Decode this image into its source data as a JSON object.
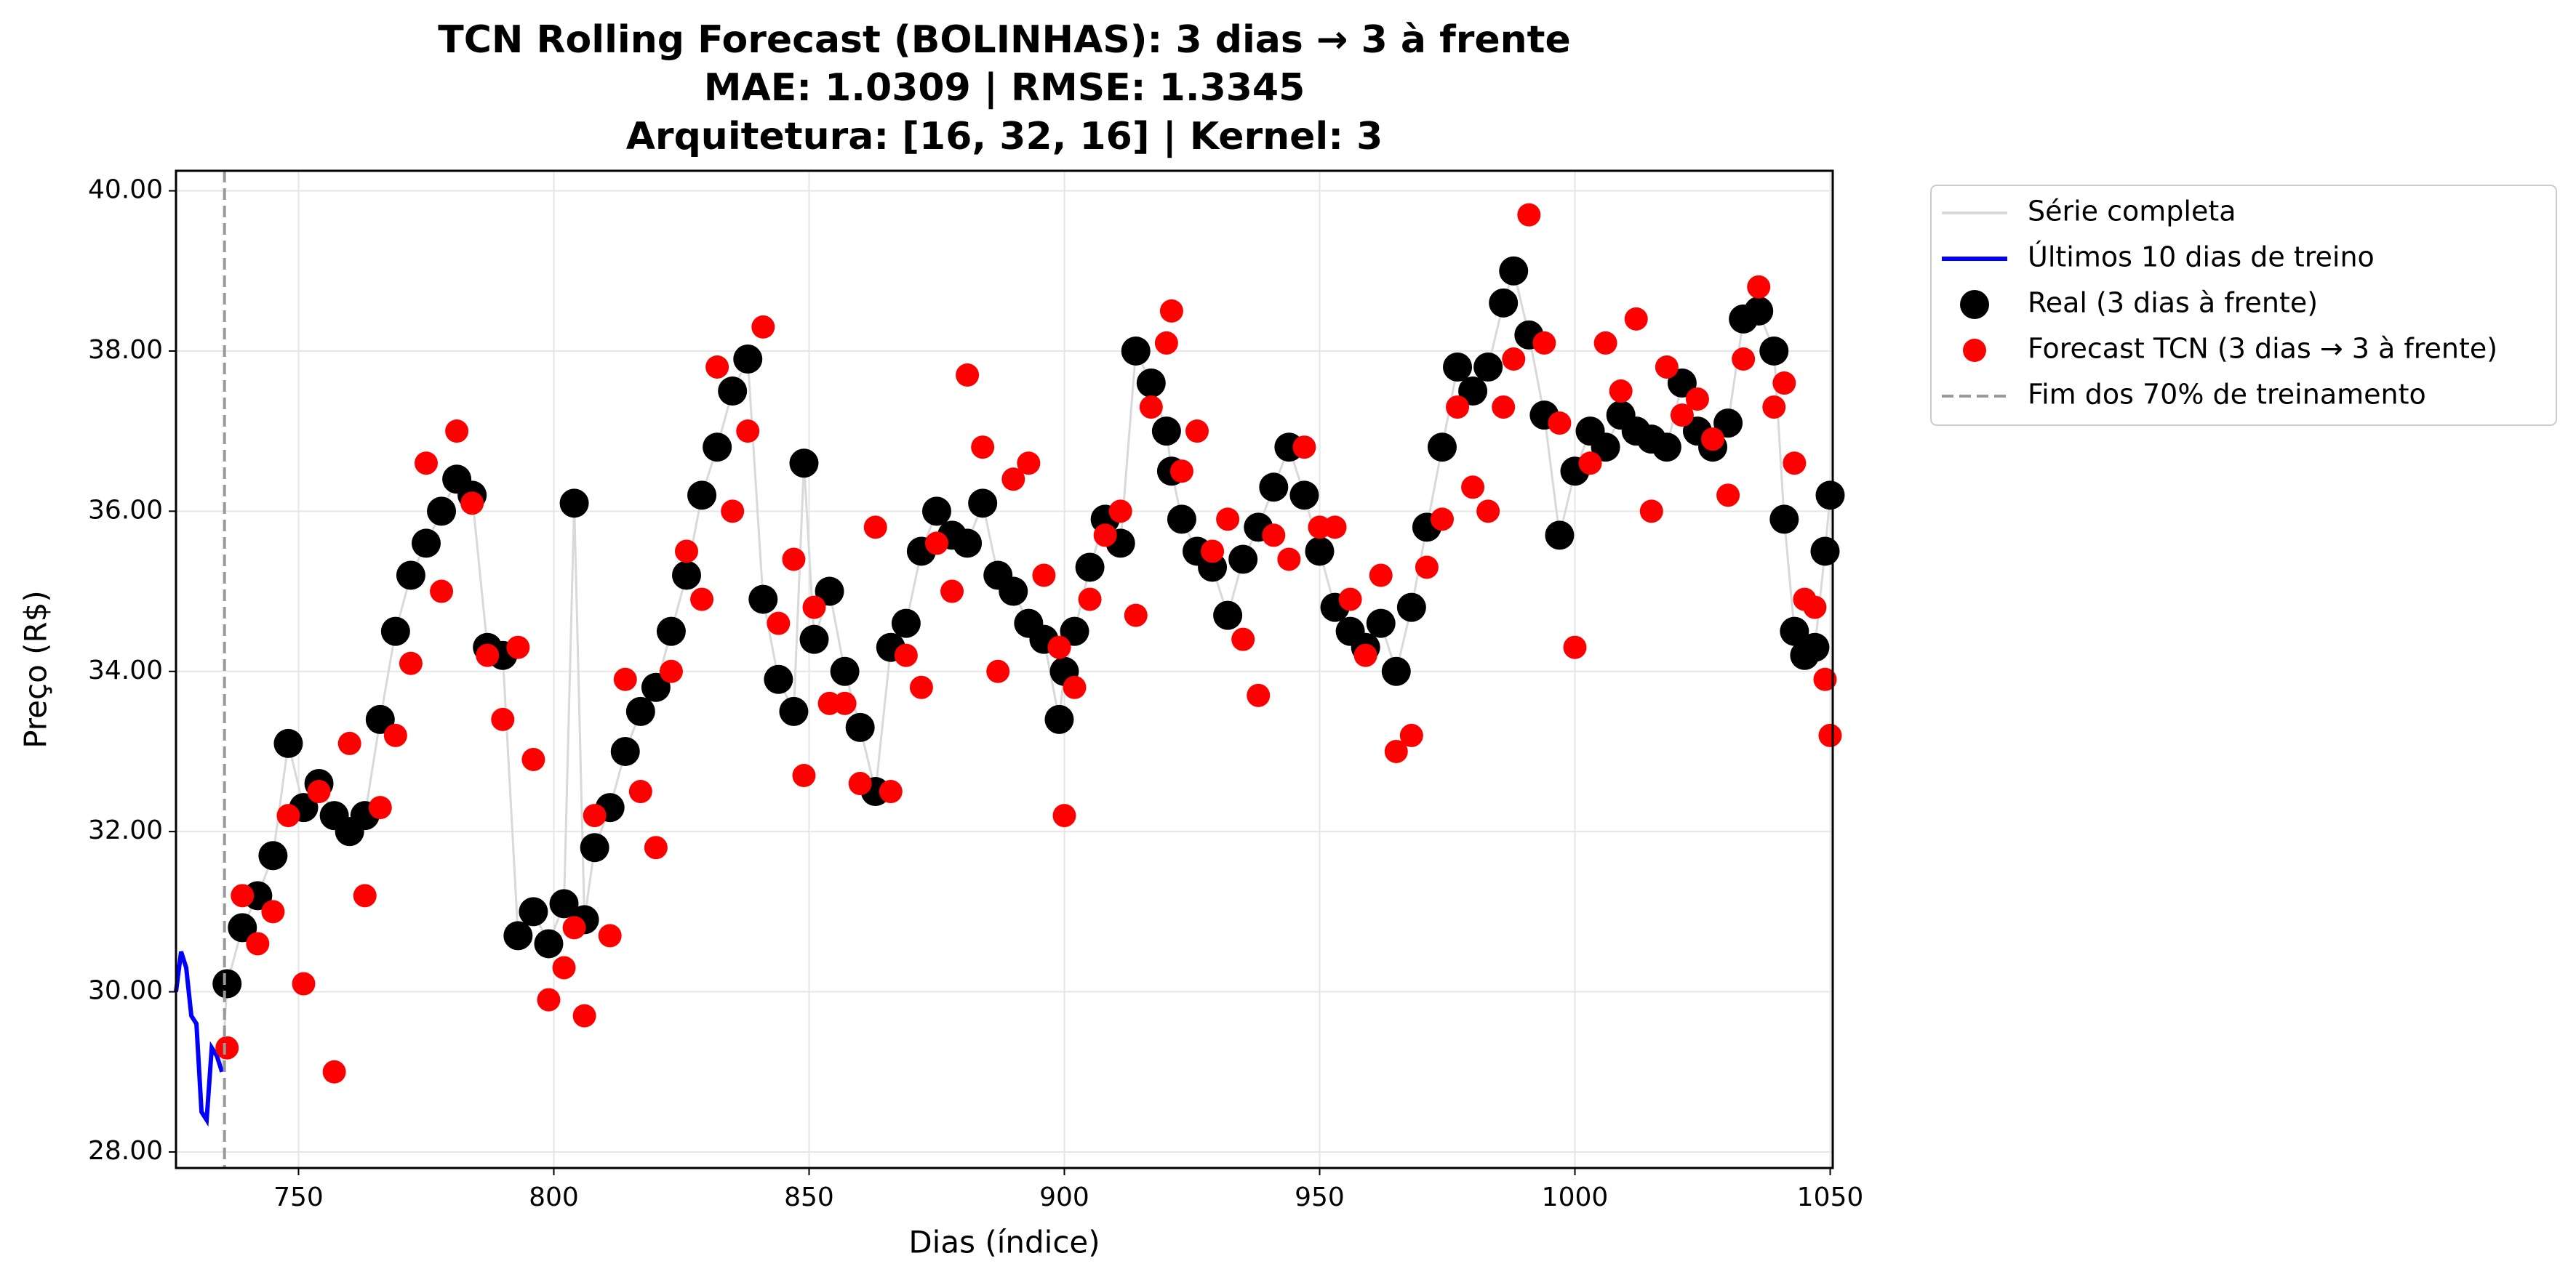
{
  "chart_data": {
    "type": "line",
    "title": [
      "TCN Rolling Forecast (BOLINHAS): 3 dias → 3 à frente",
      "MAE: 1.0309 | RMSE: 1.3345",
      "Arquitetura: [16, 32, 16] | Kernel: 3"
    ],
    "x_label": "Dias (índice)",
    "y_label": "Preço (R$)",
    "xlim": [
      726,
      1050.5
    ],
    "ylim": [
      27.8,
      40.25
    ],
    "xticks": [
      750,
      800,
      850,
      900,
      950,
      1000,
      1050
    ],
    "yticks": [
      {
        "value": 28,
        "label": "28.00"
      },
      {
        "value": 30,
        "label": "30.00"
      },
      {
        "value": 32,
        "label": "32.00"
      },
      {
        "value": 34,
        "label": "34.00"
      },
      {
        "value": 36,
        "label": "36.00"
      },
      {
        "value": 38,
        "label": "38.00"
      },
      {
        "value": 40,
        "label": "40.00"
      }
    ],
    "grid": true,
    "legend": "outside-upper-right",
    "series": [
      {
        "name": "Série completa",
        "kind": "line",
        "color": "#d9d9d9",
        "x": [
          726,
          727,
          728,
          729,
          730,
          731,
          732,
          733,
          734,
          735,
          736,
          739,
          742,
          745,
          748,
          751,
          754,
          757,
          760,
          763,
          766,
          769,
          772,
          775,
          778,
          781,
          784,
          787,
          790,
          793,
          796,
          799,
          802,
          804,
          806,
          808,
          811,
          814,
          817,
          820,
          823,
          826,
          829,
          832,
          835,
          838,
          841,
          844,
          847,
          849,
          851,
          854,
          857,
          860,
          863,
          866,
          869,
          872,
          875,
          878,
          881,
          884,
          887,
          890,
          893,
          896,
          899,
          900,
          902,
          905,
          908,
          911,
          914,
          917,
          920,
          921,
          923,
          926,
          929,
          932,
          935,
          938,
          941,
          944,
          947,
          950,
          953,
          956,
          959,
          962,
          965,
          968,
          971,
          974,
          977,
          980,
          983,
          986,
          988,
          991,
          994,
          997,
          1000,
          1003,
          1006,
          1009,
          1012,
          1015,
          1018,
          1021,
          1024,
          1027,
          1030,
          1033,
          1036,
          1039,
          1041,
          1043,
          1045,
          1047,
          1049,
          1050
        ],
        "values": [
          30.0,
          30.5,
          30.3,
          29.7,
          29.6,
          28.5,
          28.4,
          29.3,
          29.2,
          29.0,
          30.1,
          30.8,
          31.2,
          31.7,
          33.1,
          32.3,
          32.6,
          32.2,
          32.0,
          32.2,
          33.4,
          34.5,
          35.2,
          35.6,
          36.0,
          36.4,
          36.2,
          34.3,
          34.2,
          30.7,
          31.0,
          30.6,
          31.1,
          36.1,
          30.9,
          31.8,
          32.3,
          33.0,
          33.5,
          33.8,
          34.5,
          35.2,
          36.2,
          36.8,
          37.5,
          37.9,
          34.9,
          33.9,
          33.5,
          36.6,
          34.4,
          35.0,
          34.0,
          33.3,
          32.5,
          34.3,
          34.6,
          35.5,
          36.0,
          35.7,
          35.6,
          36.1,
          35.2,
          35.0,
          34.6,
          34.4,
          33.4,
          34.0,
          34.5,
          35.3,
          35.9,
          35.6,
          38.0,
          37.6,
          37.0,
          36.5,
          35.9,
          35.5,
          35.3,
          34.7,
          35.4,
          35.8,
          36.3,
          36.8,
          36.2,
          35.5,
          34.8,
          34.5,
          34.3,
          34.6,
          34.0,
          34.8,
          35.8,
          36.8,
          37.8,
          37.5,
          37.8,
          38.6,
          39.0,
          38.2,
          37.2,
          35.7,
          36.5,
          37.0,
          36.8,
          37.2,
          37.0,
          36.9,
          36.8,
          37.6,
          37.0,
          36.8,
          37.1,
          38.4,
          38.5,
          38.0,
          35.9,
          34.5,
          34.2,
          34.3,
          35.5,
          36.2
        ]
      },
      {
        "name": "Últimos 10 dias de treino",
        "kind": "line",
        "color": "#0000ff",
        "x": [
          726,
          727,
          728,
          729,
          730,
          731,
          732,
          733,
          734,
          735
        ],
        "values": [
          30.0,
          30.5,
          30.3,
          29.7,
          29.6,
          28.5,
          28.4,
          29.3,
          29.2,
          29.0
        ]
      },
      {
        "name": "Real (3 dias à frente)",
        "kind": "scatter",
        "color": "#000000",
        "x": [
          736,
          739,
          742,
          745,
          748,
          751,
          754,
          757,
          760,
          763,
          766,
          769,
          772,
          775,
          778,
          781,
          784,
          787,
          790,
          793,
          796,
          799,
          802,
          804,
          806,
          808,
          811,
          814,
          817,
          820,
          823,
          826,
          829,
          832,
          835,
          838,
          841,
          844,
          847,
          849,
          851,
          854,
          857,
          860,
          863,
          866,
          869,
          872,
          875,
          878,
          881,
          884,
          887,
          890,
          893,
          896,
          899,
          900,
          902,
          905,
          908,
          911,
          914,
          917,
          920,
          921,
          923,
          926,
          929,
          932,
          935,
          938,
          941,
          944,
          947,
          950,
          953,
          956,
          959,
          962,
          965,
          968,
          971,
          974,
          977,
          980,
          983,
          986,
          988,
          991,
          994,
          997,
          1000,
          1003,
          1006,
          1009,
          1012,
          1015,
          1018,
          1021,
          1024,
          1027,
          1030,
          1033,
          1036,
          1039,
          1041,
          1043,
          1045,
          1047,
          1049,
          1050
        ],
        "values": [
          30.1,
          30.8,
          31.2,
          31.7,
          33.1,
          32.3,
          32.6,
          32.2,
          32.0,
          32.2,
          33.4,
          34.5,
          35.2,
          35.6,
          36.0,
          36.4,
          36.2,
          34.3,
          34.2,
          30.7,
          31.0,
          30.6,
          31.1,
          36.1,
          30.9,
          31.8,
          32.3,
          33.0,
          33.5,
          33.8,
          34.5,
          35.2,
          36.2,
          36.8,
          37.5,
          37.9,
          34.9,
          33.9,
          33.5,
          36.6,
          34.4,
          35.0,
          34.0,
          33.3,
          32.5,
          34.3,
          34.6,
          35.5,
          36.0,
          35.7,
          35.6,
          36.1,
          35.2,
          35.0,
          34.6,
          34.4,
          33.4,
          34.0,
          34.5,
          35.3,
          35.9,
          35.6,
          38.0,
          37.6,
          37.0,
          36.5,
          35.9,
          35.5,
          35.3,
          34.7,
          35.4,
          35.8,
          36.3,
          36.8,
          36.2,
          35.5,
          34.8,
          34.5,
          34.3,
          34.6,
          34.0,
          34.8,
          35.8,
          36.8,
          37.8,
          37.5,
          37.8,
          38.6,
          39.0,
          38.2,
          37.2,
          35.7,
          36.5,
          37.0,
          36.8,
          37.2,
          37.0,
          36.9,
          36.8,
          37.6,
          37.0,
          36.8,
          37.1,
          38.4,
          38.5,
          38.0,
          35.9,
          34.5,
          34.2,
          34.3,
          35.5,
          36.2
        ]
      },
      {
        "name": "Forecast TCN (3 dias → 3 à frente)",
        "kind": "scatter",
        "color": "#ff0000",
        "x": [
          736,
          739,
          742,
          745,
          748,
          751,
          754,
          757,
          760,
          763,
          766,
          769,
          772,
          775,
          778,
          781,
          784,
          787,
          790,
          793,
          796,
          799,
          802,
          804,
          806,
          808,
          811,
          814,
          817,
          820,
          823,
          826,
          829,
          832,
          835,
          838,
          841,
          844,
          847,
          849,
          851,
          854,
          857,
          860,
          863,
          866,
          869,
          872,
          875,
          878,
          881,
          884,
          887,
          890,
          893,
          896,
          899,
          900,
          902,
          905,
          908,
          911,
          914,
          917,
          920,
          921,
          923,
          926,
          929,
          932,
          935,
          938,
          941,
          944,
          947,
          950,
          953,
          956,
          959,
          962,
          965,
          968,
          971,
          974,
          977,
          980,
          983,
          986,
          988,
          991,
          994,
          997,
          1000,
          1003,
          1006,
          1009,
          1012,
          1015,
          1018,
          1021,
          1024,
          1027,
          1030,
          1033,
          1036,
          1039,
          1041,
          1043,
          1045,
          1047,
          1049,
          1050
        ],
        "values": [
          29.3,
          31.2,
          30.6,
          31.0,
          32.2,
          30.1,
          32.5,
          29.0,
          33.1,
          31.2,
          32.3,
          33.2,
          34.1,
          36.6,
          35.0,
          37.0,
          36.1,
          34.2,
          33.4,
          34.3,
          32.9,
          29.9,
          30.3,
          30.8,
          29.7,
          32.2,
          30.7,
          33.9,
          32.5,
          31.8,
          34.0,
          35.5,
          34.9,
          37.8,
          36.0,
          37.0,
          38.3,
          34.6,
          35.4,
          32.7,
          34.8,
          33.6,
          33.6,
          32.6,
          35.8,
          32.5,
          34.2,
          33.8,
          35.6,
          35.0,
          37.7,
          36.8,
          34.0,
          36.4,
          36.6,
          35.2,
          34.3,
          32.2,
          33.8,
          34.9,
          35.7,
          36.0,
          34.7,
          37.3,
          38.1,
          38.5,
          36.5,
          37.0,
          35.5,
          35.9,
          34.4,
          33.7,
          35.7,
          35.4,
          36.8,
          35.8,
          35.8,
          34.9,
          34.2,
          35.2,
          33.0,
          33.2,
          35.3,
          35.9,
          37.3,
          36.3,
          36.0,
          37.3,
          37.9,
          39.7,
          38.1,
          37.1,
          34.3,
          36.6,
          38.1,
          37.5,
          38.4,
          36.0,
          37.8,
          37.2,
          37.4,
          36.9,
          36.2,
          37.9,
          38.8,
          37.3,
          37.6,
          36.6,
          34.9,
          34.8,
          33.9,
          33.2
        ]
      },
      {
        "name": "Fim dos 70% de treinamento",
        "kind": "vline",
        "color": "#999999",
        "x": 735.5
      }
    ]
  }
}
